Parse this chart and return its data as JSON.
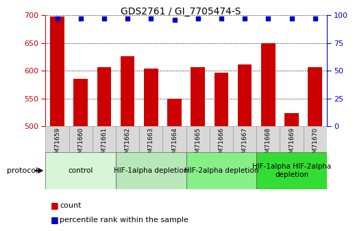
{
  "title": "GDS2761 / GI_7705474-S",
  "samples": [
    "GSM71659",
    "GSM71660",
    "GSM71661",
    "GSM71662",
    "GSM71663",
    "GSM71664",
    "GSM71665",
    "GSM71666",
    "GSM71667",
    "GSM71668",
    "GSM71669",
    "GSM71670"
  ],
  "counts": [
    698,
    585,
    606,
    626,
    604,
    549,
    606,
    596,
    611,
    650,
    524,
    606
  ],
  "percentiles": [
    97,
    97,
    97,
    97,
    97,
    96,
    97,
    97,
    97,
    97,
    97,
    97
  ],
  "ylim_left": [
    500,
    700
  ],
  "ylim_right": [
    0,
    100
  ],
  "yticks_left": [
    500,
    550,
    600,
    650,
    700
  ],
  "yticks_right": [
    0,
    25,
    50,
    75,
    100
  ],
  "bar_color": "#cc0000",
  "dot_color": "#0000cc",
  "bg_color": "#ffffff",
  "axis_color_left": "#cc0000",
  "axis_color_right": "#0000cc",
  "sample_box_color": "#d8d8d8",
  "protocol_groups": [
    {
      "label": "control",
      "start": 0,
      "end": 3,
      "color": "#d8f5d8"
    },
    {
      "label": "HIF-1alpha depletion",
      "start": 3,
      "end": 6,
      "color": "#b8e8b8"
    },
    {
      "label": "HIF-2alpha depletion",
      "start": 6,
      "end": 9,
      "color": "#88ee88"
    },
    {
      "label": "HIF-1alpha HIF-2alpha\ndepletion",
      "start": 9,
      "end": 12,
      "color": "#33dd33"
    }
  ],
  "title_fontsize": 10,
  "tick_fontsize": 8,
  "sample_fontsize": 6.5,
  "protocol_fontsize": 7.5,
  "legend_fontsize": 8,
  "protocol_label": "protocol",
  "legend_count_label": "count",
  "legend_percentile_label": "percentile rank within the sample"
}
